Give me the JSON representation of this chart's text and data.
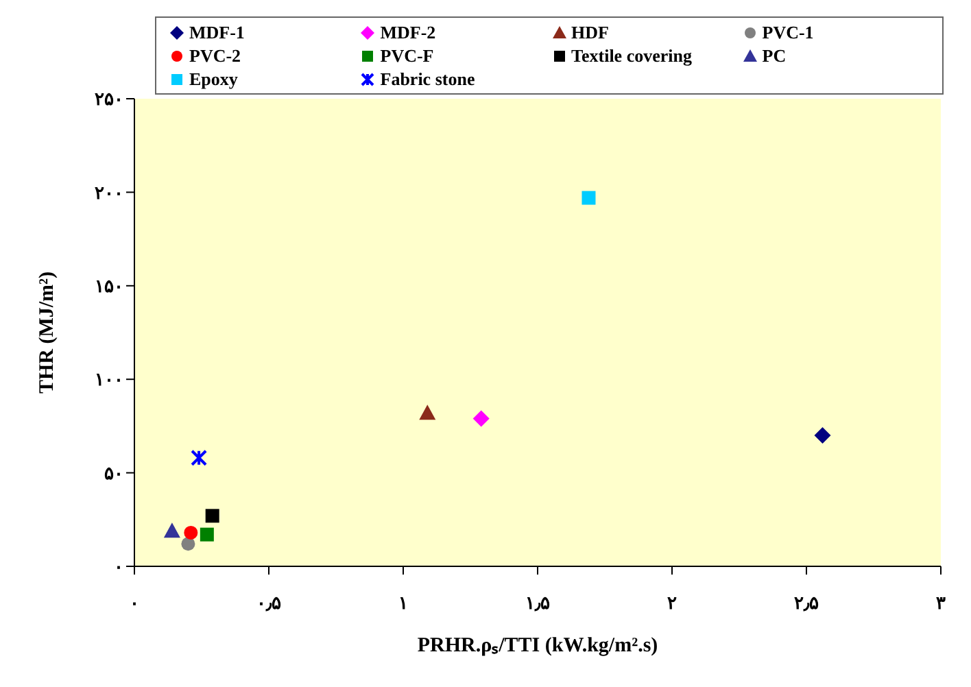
{
  "chart_data": {
    "type": "scatter",
    "xlabel": "PRHR.ρₛ/TTI (kW.kg/m².s)",
    "ylabel": "THR (MJ/m²)",
    "xlim": [
      0,
      3
    ],
    "ylim": [
      0,
      250
    ],
    "xticks": [
      {
        "value": 0,
        "label": "۰"
      },
      {
        "value": 0.5,
        "label": "۰٫۵"
      },
      {
        "value": 1,
        "label": "۱"
      },
      {
        "value": 1.5,
        "label": "۱٫۵"
      },
      {
        "value": 2,
        "label": "۲"
      },
      {
        "value": 2.5,
        "label": "۲٫۵"
      },
      {
        "value": 3,
        "label": "۳"
      }
    ],
    "yticks": [
      {
        "value": 0,
        "label": "۰"
      },
      {
        "value": 50,
        "label": "۵۰"
      },
      {
        "value": 100,
        "label": "۱۰۰"
      },
      {
        "value": 150,
        "label": "۱۵۰"
      },
      {
        "value": 200,
        "label": "۲۰۰"
      },
      {
        "value": 250,
        "label": "۲۵۰"
      }
    ],
    "grid": false,
    "legend": "top",
    "series": [
      {
        "name": "MDF-1",
        "color": "#000080",
        "marker": "diamond",
        "x": [
          2.56
        ],
        "values": [
          70
        ]
      },
      {
        "name": "MDF-2",
        "color": "#ff00ff",
        "marker": "diamond",
        "x": [
          1.29
        ],
        "values": [
          79
        ]
      },
      {
        "name": "HDF",
        "color": "#8b2a1a",
        "marker": "triangle",
        "x": [
          1.09
        ],
        "values": [
          82
        ]
      },
      {
        "name": "PVC-1",
        "color": "#808080",
        "marker": "circle",
        "x": [
          0.2
        ],
        "values": [
          12
        ]
      },
      {
        "name": "PVC-2",
        "color": "#ff0000",
        "marker": "circle",
        "x": [
          0.21
        ],
        "values": [
          18
        ]
      },
      {
        "name": "PVC-F",
        "color": "#008000",
        "marker": "square",
        "x": [
          0.27
        ],
        "values": [
          17
        ]
      },
      {
        "name": "Textile covering",
        "color": "#000000",
        "marker": "square",
        "x": [
          0.29
        ],
        "values": [
          27
        ]
      },
      {
        "name": "PC",
        "color": "#333399",
        "marker": "triangle",
        "x": [
          0.14
        ],
        "values": [
          19
        ]
      },
      {
        "name": "Epoxy",
        "color": "#00ccff",
        "marker": "square",
        "x": [
          1.69
        ],
        "values": [
          197
        ]
      },
      {
        "name": "Fabric stone",
        "color": "#0000ff",
        "marker": "cross",
        "x": [
          0.24
        ],
        "values": [
          58
        ]
      }
    ]
  }
}
